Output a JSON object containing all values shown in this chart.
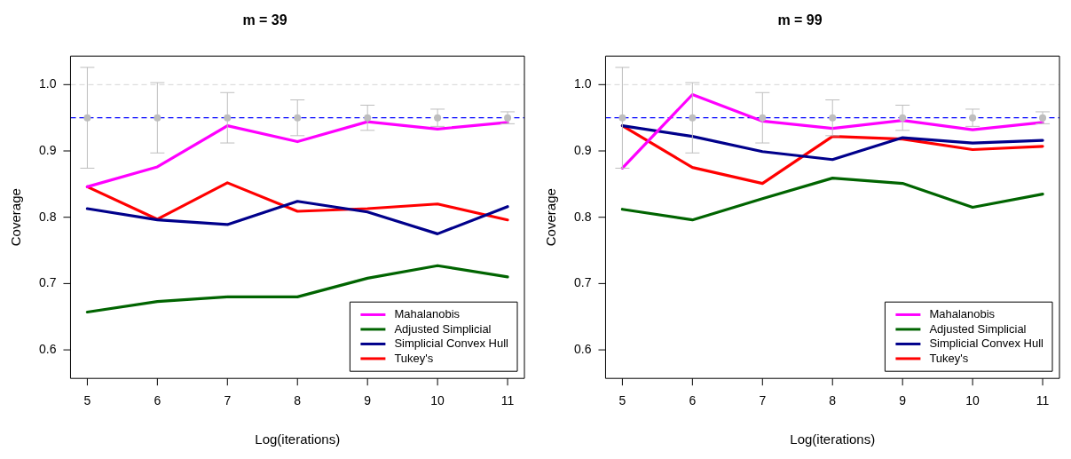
{
  "chart_data": [
    {
      "type": "line",
      "title": "m = 39",
      "xlabel": "Log(iterations)",
      "ylabel": "Coverage",
      "x": [
        5,
        6,
        7,
        8,
        9,
        10,
        11
      ],
      "xlim": [
        4.76,
        11.24
      ],
      "xticks": [
        5,
        6,
        7,
        8,
        9,
        10,
        11
      ],
      "ylim": [
        0.557,
        1.043
      ],
      "yticks": [
        {
          "value": 0.6,
          "label": "0.6"
        },
        {
          "value": 0.7,
          "label": "0.7"
        },
        {
          "value": 0.8,
          "label": "0.8"
        },
        {
          "value": 0.9,
          "label": "0.9"
        },
        {
          "value": 1.0,
          "label": "1.0"
        }
      ],
      "grid": false,
      "legend": "bottom right",
      "marker": "none",
      "ref_lines": [
        {
          "axis": "y",
          "value": 1.0,
          "color": "#dddddd",
          "line_style": "dashed"
        },
        {
          "axis": "y",
          "value": 0.95,
          "color": "#0000ff",
          "line_style": "dashed"
        }
      ],
      "series": [
        {
          "type": "scatter",
          "marker": "circle",
          "color": "#bebebe",
          "values": [
            0.95,
            0.95,
            0.95,
            0.95,
            0.95,
            0.95,
            0.95
          ],
          "errors": [
            0.076,
            0.053,
            0.038,
            0.027,
            0.019,
            0.013,
            0.009
          ]
        },
        {
          "name": "Mahalanobis",
          "color": "#ff00ff",
          "values": [
            0.846,
            0.876,
            0.938,
            0.914,
            0.944,
            0.933,
            0.943
          ]
        },
        {
          "name": "Adjusted Simplicial",
          "color": "#006400",
          "values": [
            0.657,
            0.673,
            0.68,
            0.68,
            0.708,
            0.727,
            0.71
          ]
        },
        {
          "name": "Simplicial Convex Hull",
          "color": "#00008b",
          "values": [
            0.813,
            0.796,
            0.789,
            0.824,
            0.808,
            0.775,
            0.816
          ]
        },
        {
          "name": "Tukey's",
          "color": "#ff0000",
          "values": [
            0.846,
            0.797,
            0.852,
            0.809,
            0.813,
            0.82,
            0.796
          ]
        }
      ]
    },
    {
      "type": "line",
      "title": "m = 99",
      "xlabel": "Log(iterations)",
      "ylabel": "Coverage",
      "x": [
        5,
        6,
        7,
        8,
        9,
        10,
        11
      ],
      "xlim": [
        4.76,
        11.24
      ],
      "xticks": [
        5,
        6,
        7,
        8,
        9,
        10,
        11
      ],
      "ylim": [
        0.557,
        1.043
      ],
      "yticks": [
        {
          "value": 0.6,
          "label": "0.6"
        },
        {
          "value": 0.7,
          "label": "0.7"
        },
        {
          "value": 0.8,
          "label": "0.8"
        },
        {
          "value": 0.9,
          "label": "0.9"
        },
        {
          "value": 1.0,
          "label": "1.0"
        }
      ],
      "grid": false,
      "legend": "bottom right",
      "marker": "none",
      "ref_lines": [
        {
          "axis": "y",
          "value": 1.0,
          "color": "#dddddd",
          "line_style": "dashed"
        },
        {
          "axis": "y",
          "value": 0.95,
          "color": "#0000ff",
          "line_style": "dashed"
        }
      ],
      "series": [
        {
          "type": "scatter",
          "marker": "circle",
          "color": "#bebebe",
          "values": [
            0.95,
            0.95,
            0.95,
            0.95,
            0.95,
            0.95,
            0.95
          ],
          "errors": [
            0.076,
            0.053,
            0.038,
            0.027,
            0.019,
            0.013,
            0.009
          ]
        },
        {
          "name": "Mahalanobis",
          "color": "#ff00ff",
          "values": [
            0.874,
            0.985,
            0.945,
            0.934,
            0.946,
            0.932,
            0.943
          ]
        },
        {
          "name": "Adjusted Simplicial",
          "color": "#006400",
          "values": [
            0.812,
            0.796,
            0.828,
            0.859,
            0.851,
            0.815,
            0.835
          ]
        },
        {
          "name": "Simplicial Convex Hull",
          "color": "#00008b",
          "values": [
            0.938,
            0.922,
            0.899,
            0.887,
            0.92,
            0.912,
            0.916
          ]
        },
        {
          "name": "Tukey's",
          "color": "#ff0000",
          "values": [
            0.938,
            0.875,
            0.851,
            0.922,
            0.918,
            0.902,
            0.907
          ]
        }
      ]
    }
  ]
}
